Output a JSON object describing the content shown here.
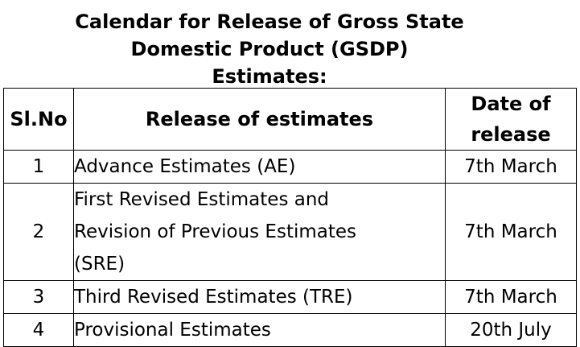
{
  "title": {
    "line1": "Calendar for Release of Gross State",
    "line2": "Domestic Product (GSDP)",
    "line3": "Estimates:"
  },
  "table": {
    "headers": {
      "slno": "Sl.No",
      "release": "Release of estimates",
      "date_line1": "Date of",
      "date_line2": "release"
    },
    "rows": [
      {
        "sl": "1",
        "release_lines": [
          "Advance Estimates (AE)"
        ],
        "date": "7th March"
      },
      {
        "sl": "2",
        "release_lines": [
          "First Revised Estimates and",
          "Revision of Previous Estimates",
          "(SRE)"
        ],
        "date": "7th March"
      },
      {
        "sl": "3",
        "release_lines": [
          "Third Revised Estimates (TRE)"
        ],
        "date": "7th March"
      },
      {
        "sl": "4",
        "release_lines": [
          "Provisional Estimates"
        ],
        "date": "20th July"
      }
    ]
  }
}
